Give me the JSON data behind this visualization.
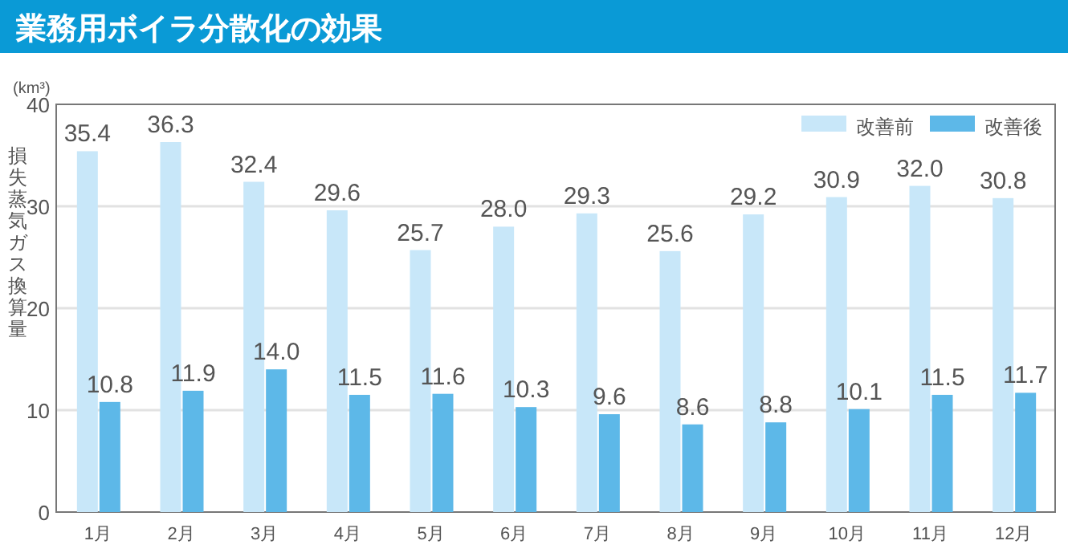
{
  "chart_data": {
    "type": "bar",
    "title": "業務用ボイラ分散化の効果",
    "ylabel": "損失蒸気ガス換算量",
    "annotations": [
      "(km³)"
    ],
    "categories": [
      "1月",
      "2月",
      "3月",
      "4月",
      "5月",
      "6月",
      "7月",
      "8月",
      "9月",
      "10月",
      "11月",
      "12月"
    ],
    "series": [
      {
        "name": "改善前",
        "color": "#c8e7f9",
        "values": [
          35.4,
          36.3,
          32.4,
          29.6,
          25.7,
          28.0,
          29.3,
          25.6,
          29.2,
          30.9,
          32.0,
          30.8
        ],
        "value_labels": [
          "35.4",
          "36.3",
          "32.4",
          "29.6",
          "25.7",
          "28.0",
          "29.3",
          "25.6",
          "29.2",
          "30.9",
          "32.0",
          "30.8"
        ]
      },
      {
        "name": "改善後",
        "color": "#5db8e8",
        "values": [
          10.8,
          11.9,
          14.0,
          11.5,
          11.6,
          10.3,
          9.6,
          8.6,
          8.8,
          10.1,
          11.5,
          11.7
        ],
        "value_labels": [
          "10.8",
          "11.9",
          "14.0",
          "11.5",
          "11.6",
          "10.3",
          "9.6",
          "8.6",
          "8.8",
          "10.1",
          "11.5",
          "11.7"
        ]
      }
    ],
    "ylim": [
      0,
      40
    ],
    "yticks": [
      0,
      10,
      20,
      30,
      40
    ],
    "grid": "y",
    "legend": "top right"
  }
}
